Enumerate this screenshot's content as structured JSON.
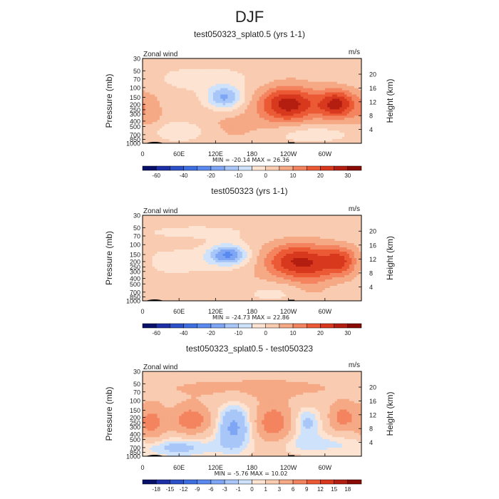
{
  "figure_title": "DJF",
  "chart_data": [
    {
      "type": "heatmap",
      "title": "test050323_splat0.5 (yrs 1-1)",
      "variable_label": "Zonal wind",
      "units": "m/s",
      "ylabel": "Pressure (mb)",
      "right_label": "Height (km)",
      "pressure_ticks": [
        "30",
        "50",
        "70",
        "100",
        "150",
        "200",
        "250",
        "300",
        "400",
        "500",
        "700",
        "850",
        "1000"
      ],
      "height_ticks": [
        "20",
        "16",
        "12",
        "8",
        "4"
      ],
      "lon_ticks": [
        "0",
        "60E",
        "120E",
        "180",
        "120W",
        "60W"
      ],
      "ylim_mb": [
        1000,
        30
      ],
      "xlim_lon": [
        0,
        360
      ],
      "min_max_text": "MIN = -20.14   MAX =  26.36",
      "colorbar_levels": [
        -70,
        -60,
        -50,
        -40,
        -30,
        -20,
        -15,
        -10,
        -5,
        0,
        5,
        10,
        15,
        20,
        25,
        30,
        35
      ],
      "colorbar_labels": [
        "-60",
        "-40",
        "-20",
        "-10",
        "0",
        "10",
        "20",
        "30"
      ],
      "colorbar_colors": [
        "#08106a",
        "#1c2fa6",
        "#2c50c8",
        "#3d6fe0",
        "#5a8af0",
        "#7ea6f4",
        "#a8c6f7",
        "#cfe2fb",
        "#fde4d2",
        "#f9cbb0",
        "#f6a985",
        "#f3845f",
        "#ec5a35",
        "#d8381d",
        "#b41e10",
        "#8a0a06"
      ],
      "features": [
        {
          "kind": "blob",
          "lon": 135,
          "p": 150,
          "value": -18,
          "slon": 20,
          "sz": 0.7
        },
        {
          "kind": "blob",
          "lon": 240,
          "p": 200,
          "value": 26,
          "slon": 34,
          "sz": 1.1
        },
        {
          "kind": "blob",
          "lon": 320,
          "p": 200,
          "value": 24,
          "slon": 22,
          "sz": 0.9
        },
        {
          "kind": "blob",
          "lon": 10,
          "p": 300,
          "value": 6,
          "slon": 18,
          "sz": 1.4
        },
        {
          "kind": "blob",
          "lon": 150,
          "p": 500,
          "value": 5,
          "slon": 40,
          "sz": 0.9
        },
        {
          "kind": "blob",
          "lon": 60,
          "p": 600,
          "value": -6,
          "slon": 40,
          "sz": 0.6
        },
        {
          "kind": "blob",
          "lon": 270,
          "p": 650,
          "value": -5,
          "slon": 50,
          "sz": 0.6
        },
        {
          "kind": "blob",
          "lon": 100,
          "p": 70,
          "value": -4,
          "slon": 60,
          "sz": 0.8
        }
      ]
    },
    {
      "type": "heatmap",
      "title": "test050323 (yrs 1-1)",
      "variable_label": "Zonal wind",
      "units": "m/s",
      "ylabel": "Pressure (mb)",
      "right_label": "Height (km)",
      "pressure_ticks": [
        "30",
        "50",
        "70",
        "100",
        "150",
        "200",
        "250",
        "300",
        "400",
        "500",
        "700",
        "850",
        "1000"
      ],
      "height_ticks": [
        "20",
        "16",
        "12",
        "8",
        "4"
      ],
      "lon_ticks": [
        "0",
        "60E",
        "120E",
        "180",
        "120W",
        "60W"
      ],
      "ylim_mb": [
        1000,
        30
      ],
      "xlim_lon": [
        0,
        360
      ],
      "min_max_text": "MIN = -24.73   MAX =  22.86",
      "colorbar_levels": [
        -70,
        -60,
        -50,
        -40,
        -30,
        -20,
        -15,
        -10,
        -5,
        0,
        5,
        10,
        15,
        20,
        25,
        30,
        35
      ],
      "colorbar_labels": [
        "-60",
        "-40",
        "-20",
        "-10",
        "0",
        "10",
        "20",
        "30"
      ],
      "colorbar_colors": [
        "#08106a",
        "#1c2fa6",
        "#2c50c8",
        "#3d6fe0",
        "#5a8af0",
        "#7ea6f4",
        "#a8c6f7",
        "#cfe2fb",
        "#fde4d2",
        "#f9cbb0",
        "#f6a985",
        "#f3845f",
        "#ec5a35",
        "#d8381d",
        "#b41e10",
        "#8a0a06"
      ],
      "features": [
        {
          "kind": "blob",
          "lon": 140,
          "p": 150,
          "value": -22,
          "slon": 22,
          "sz": 0.6
        },
        {
          "kind": "blob",
          "lon": 250,
          "p": 200,
          "value": 22,
          "slon": 36,
          "sz": 1.1
        },
        {
          "kind": "blob",
          "lon": 325,
          "p": 200,
          "value": 20,
          "slon": 22,
          "sz": 0.9
        },
        {
          "kind": "blob",
          "lon": 60,
          "p": 200,
          "value": -5,
          "slon": 60,
          "sz": 0.7
        },
        {
          "kind": "blob",
          "lon": 150,
          "p": 600,
          "value": 4,
          "slon": 40,
          "sz": 0.8
        },
        {
          "kind": "blob",
          "lon": 200,
          "p": 700,
          "value": -5,
          "slon": 40,
          "sz": 0.6
        },
        {
          "kind": "blob",
          "lon": 280,
          "p": 300,
          "value": 6,
          "slon": 20,
          "sz": 1.5
        },
        {
          "kind": "blob",
          "lon": 90,
          "p": 60,
          "value": -3,
          "slon": 80,
          "sz": 0.5
        }
      ]
    },
    {
      "type": "heatmap",
      "title": "test050323_splat0.5 - test050323",
      "variable_label": "Zonal wind",
      "units": "m/s",
      "ylabel": "Pressure (mb)",
      "right_label": "Height (km)",
      "pressure_ticks": [
        "30",
        "50",
        "70",
        "100",
        "150",
        "200",
        "250",
        "300",
        "400",
        "500",
        "700",
        "850",
        "1000"
      ],
      "height_ticks": [
        "20",
        "16",
        "12",
        "8",
        "4"
      ],
      "lon_ticks": [
        "0",
        "60E",
        "120E",
        "180",
        "120W",
        "60W"
      ],
      "ylim_mb": [
        1000,
        30
      ],
      "xlim_lon": [
        0,
        360
      ],
      "min_max_text": "MIN =  -5.76   MAX =  10.02",
      "colorbar_levels": [
        -21,
        -18,
        -15,
        -12,
        -9,
        -6,
        -3,
        -1,
        0,
        1,
        3,
        6,
        9,
        12,
        15,
        18,
        21
      ],
      "colorbar_labels": [
        "-18",
        "-15",
        "-12",
        "-9",
        "-6",
        "-3",
        "-1",
        "0",
        "1",
        "3",
        "6",
        "9",
        "12",
        "15",
        "18"
      ],
      "colorbar_colors": [
        "#08106a",
        "#1c2fa6",
        "#2c50c8",
        "#3d6fe0",
        "#5a8af0",
        "#7ea6f4",
        "#a8c6f7",
        "#cfe2fb",
        "#fde4d2",
        "#f9cbb0",
        "#f6a985",
        "#f3845f",
        "#ec5a35",
        "#d8381d",
        "#b41e10",
        "#8a0a06"
      ],
      "features": [
        {
          "kind": "blob",
          "lon": 150,
          "p": 300,
          "value": -5,
          "slon": 20,
          "sz": 1.4
        },
        {
          "kind": "blob",
          "lon": 80,
          "p": 220,
          "value": 7,
          "slon": 22,
          "sz": 0.8
        },
        {
          "kind": "blob",
          "lon": 15,
          "p": 250,
          "value": 6,
          "slon": 15,
          "sz": 1.0
        },
        {
          "kind": "blob",
          "lon": 215,
          "p": 250,
          "value": 7,
          "slon": 20,
          "sz": 1.1
        },
        {
          "kind": "blob",
          "lon": 330,
          "p": 200,
          "value": 6,
          "slon": 15,
          "sz": 0.8
        },
        {
          "kind": "blob",
          "lon": 270,
          "p": 250,
          "value": -3,
          "slon": 15,
          "sz": 0.9
        },
        {
          "kind": "blob",
          "lon": 60,
          "p": 700,
          "value": -3,
          "slon": 45,
          "sz": 0.6
        },
        {
          "kind": "blob",
          "lon": 280,
          "p": 600,
          "value": -2,
          "slon": 50,
          "sz": 0.6
        },
        {
          "kind": "blob",
          "lon": 180,
          "p": 60,
          "value": 2,
          "slon": 160,
          "sz": 0.9
        }
      ]
    }
  ]
}
